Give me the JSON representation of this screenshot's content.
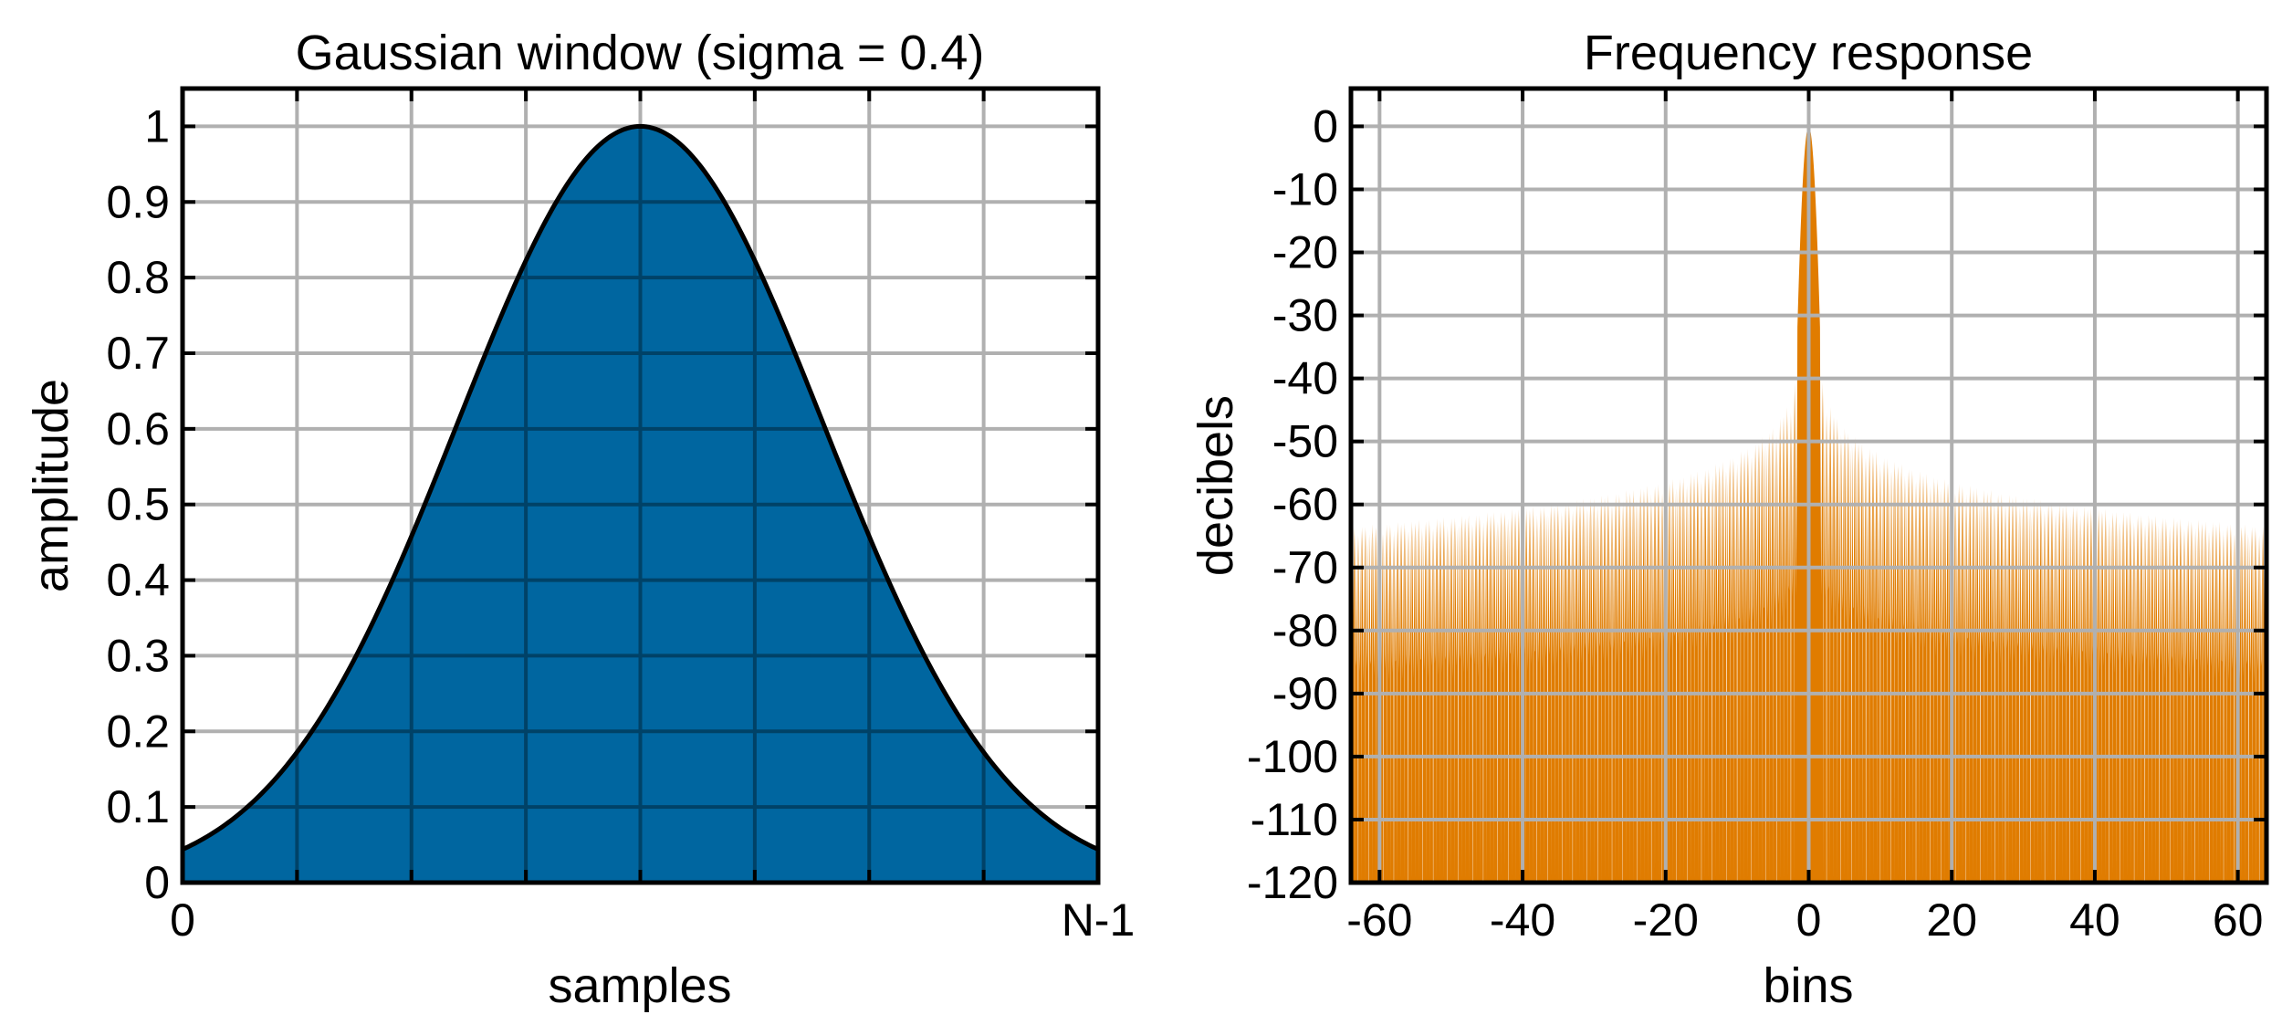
{
  "chart_data": [
    {
      "type": "area",
      "title": "Gaussian window (sigma = 0.4)",
      "xlabel": "samples",
      "ylabel": "amplitude",
      "xticks": [
        "0",
        "N-1"
      ],
      "x_range": [
        0,
        1
      ],
      "x_gridlines": 8,
      "sigma": 0.4,
      "ylim": [
        0,
        1.05
      ],
      "yticks": [
        0,
        0.1,
        0.2,
        0.3,
        0.4,
        0.5,
        0.6,
        0.7,
        0.8,
        0.9,
        1
      ],
      "ytick_labels": [
        "0",
        "0.1",
        "0.2",
        "0.3",
        "0.4",
        "0.5",
        "0.6",
        "0.7",
        "0.8",
        "0.9",
        "1"
      ],
      "grid": true,
      "fill_color": "#0066a0",
      "line_color": "#000000"
    },
    {
      "type": "area",
      "title": "Frequency response",
      "xlabel": "bins",
      "ylabel": "decibels",
      "xlim": [
        -64,
        64
      ],
      "xticks": [
        -60,
        -40,
        -20,
        0,
        20,
        40,
        60
      ],
      "xtick_labels": [
        "-60",
        "-40",
        "-20",
        "0",
        "20",
        "40",
        "60"
      ],
      "ylim": [
        -120,
        6
      ],
      "yticks": [
        0,
        -10,
        -20,
        -30,
        -40,
        -50,
        -60,
        -70,
        -80,
        -90,
        -100,
        -110,
        -120
      ],
      "ytick_labels": [
        "0",
        "-10",
        "-20",
        "-30",
        "-40",
        "-50",
        "-60",
        "-70",
        "-80",
        "-90",
        "-100",
        "-110",
        "-120"
      ],
      "grid": true,
      "main_lobe_peak_db": 0,
      "first_sidelobe_db": -42,
      "edge_sidelobe_db": -63,
      "fill_color": "#e07c00"
    }
  ]
}
